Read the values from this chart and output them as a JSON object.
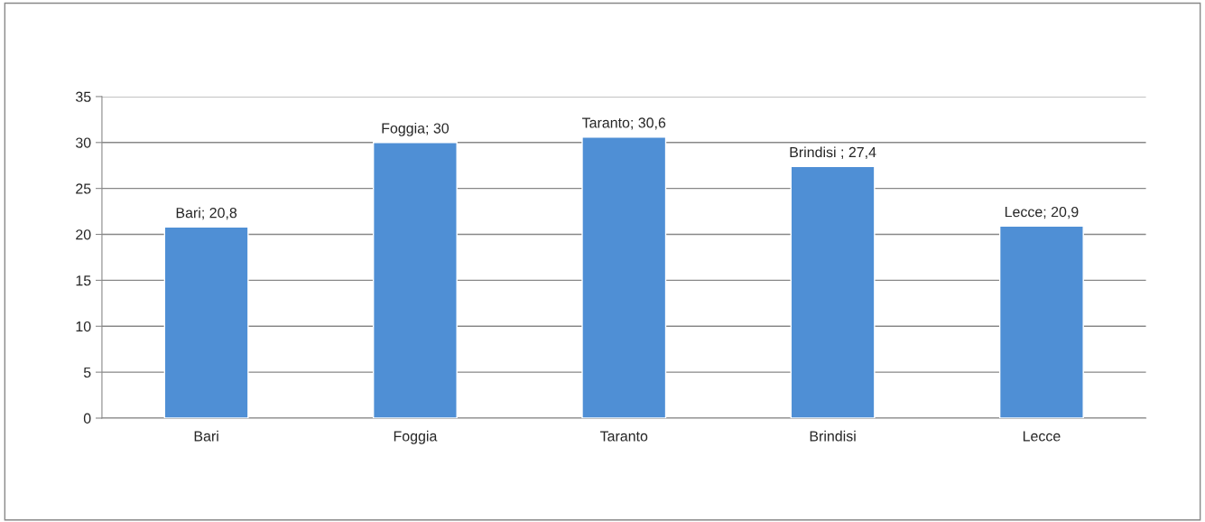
{
  "chart_data": {
    "type": "bar",
    "categories": [
      "Bari",
      "Foggia",
      "Taranto",
      "Brindisi",
      "Lecce"
    ],
    "values": [
      20.8,
      30,
      30.6,
      27.4,
      20.9
    ],
    "value_labels": [
      "Bari; 20,8",
      "Foggia; 30",
      "Taranto; 30,6",
      "Brindisi ; 27,4",
      "Lecce; 20,9"
    ],
    "color": "#4f8fd5",
    "ylim": [
      0,
      35
    ],
    "yticks": [
      0,
      5,
      10,
      15,
      20,
      25,
      30,
      35
    ],
    "grid": "y"
  }
}
